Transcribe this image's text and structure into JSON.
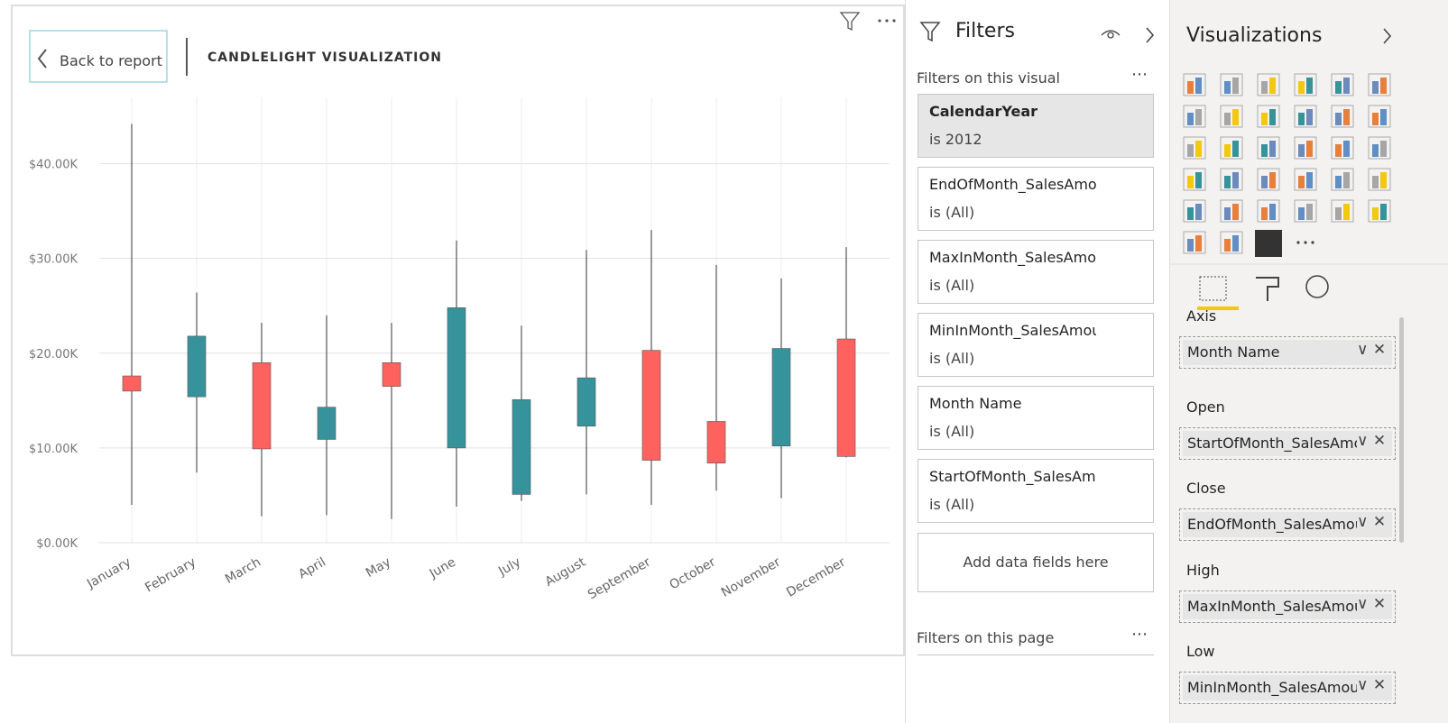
{
  "back_button": "Back to report",
  "chart_data": {
    "type": "candlestick",
    "title": "CANDLELIGHT VISUALIZATION",
    "categories": [
      "January",
      "February",
      "March",
      "April",
      "May",
      "June",
      "July",
      "August",
      "September",
      "October",
      "November",
      "December"
    ],
    "open": [
      17.6,
      15.4,
      19.0,
      10.9,
      19.0,
      10.0,
      5.1,
      12.3,
      20.3,
      12.8,
      10.2,
      21.5
    ],
    "high": [
      44.2,
      26.4,
      23.2,
      24.0,
      23.2,
      31.9,
      22.9,
      30.9,
      33.0,
      29.3,
      27.9,
      31.2
    ],
    "low": [
      4.0,
      7.4,
      2.8,
      2.9,
      2.5,
      3.8,
      4.4,
      5.1,
      4.0,
      5.5,
      4.7,
      9.0
    ],
    "close": [
      16.0,
      21.8,
      9.9,
      14.3,
      16.5,
      24.8,
      15.1,
      17.4,
      8.7,
      8.4,
      20.5,
      9.1
    ],
    "up_color": "#37939b",
    "down_color": "#fd625e",
    "ylim": [
      0,
      47
    ],
    "yticks": [
      {
        "value": 0,
        "label": "$0.00K"
      },
      {
        "value": 10,
        "label": "$10.00K"
      },
      {
        "value": 20,
        "label": "$20.00K"
      },
      {
        "value": 30,
        "label": "$30.00K"
      },
      {
        "value": 40,
        "label": "$40.00K"
      }
    ],
    "grid": true
  },
  "filters": {
    "title": "Filters",
    "visual_section": "Filters on this visual",
    "cards": [
      {
        "name": "CalendarYear",
        "state": "is 2012"
      },
      {
        "name": "EndOfMonth_SalesAmo",
        "state": "is (All)"
      },
      {
        "name": "MaxInMonth_SalesAmo",
        "state": "is (All)"
      },
      {
        "name": "MinInMonth_SalesAmou",
        "state": "is (All)"
      },
      {
        "name": "Month Name",
        "state": "is (All)"
      },
      {
        "name": "StartOfMonth_SalesAmo",
        "state": "is (All)"
      }
    ],
    "add_fields": "Add data fields here",
    "page_section": "Filters on this page"
  },
  "visualizations": {
    "title": "Visualizations",
    "wells": [
      {
        "label": "Axis",
        "field": "Month Name"
      },
      {
        "label": "Open",
        "field": "StartOfMonth_SalesAmo"
      },
      {
        "label": "Close",
        "field": "EndOfMonth_SalesAmou"
      },
      {
        "label": "High",
        "field": "MaxInMonth_SalesAmou"
      },
      {
        "label": "Low",
        "field": "MinInMonth_SalesAmou"
      }
    ]
  }
}
